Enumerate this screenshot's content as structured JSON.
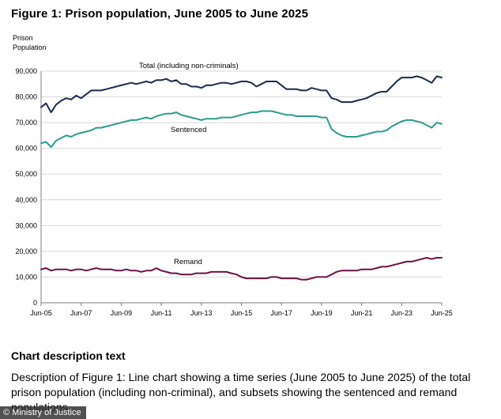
{
  "figure_title": "Figure 1: Prison population, June 2005 to June 2025",
  "description_heading": "Chart description text",
  "description_text": "Description of Figure 1: Line chart showing a time series (June 2005 to June 2025) of the total prison population (including non-criminal), and subsets showing the sentenced and remand populations",
  "credit": "© Ministry of Justice",
  "colors": {
    "total": "#1c2a4f",
    "sentenced": "#2a9d8f",
    "remand": "#6b1246",
    "axis": "#7f7f7f",
    "grid": "#d9d9d9"
  },
  "chart_data": {
    "type": "line",
    "title": "Figure 1: Prison population, June 2005 to June 2025",
    "ylabel": [
      "Prison",
      "Population"
    ],
    "xlabel": "",
    "ylim": [
      0,
      90000
    ],
    "xlim": [
      2005.5,
      2025.5
    ],
    "grid": true,
    "yticks": [
      "0",
      "10,000",
      "20,000",
      "30,000",
      "40,000",
      "50,000",
      "60,000",
      "70,000",
      "80,000",
      "90,000"
    ],
    "xticks": [
      "Jun-05",
      "Jun-07",
      "Jun-09",
      "Jun-11",
      "Jun-13",
      "Jun-15",
      "Jun-17",
      "Jun-19",
      "Jun-21",
      "Jun-23",
      "Jun-25"
    ],
    "series": [
      {
        "name": "Total (including non-criminals)",
        "x": [
          2005.5,
          2005.75,
          2006.0,
          2006.25,
          2006.5,
          2006.75,
          2007.0,
          2007.25,
          2007.5,
          2007.75,
          2008.0,
          2008.25,
          2008.5,
          2008.75,
          2009.0,
          2009.25,
          2009.5,
          2009.75,
          2010.0,
          2010.25,
          2010.5,
          2010.75,
          2011.0,
          2011.25,
          2011.5,
          2011.75,
          2012.0,
          2012.25,
          2012.5,
          2012.75,
          2013.0,
          2013.25,
          2013.5,
          2013.75,
          2014.0,
          2014.25,
          2014.5,
          2014.75,
          2015.0,
          2015.25,
          2015.5,
          2015.75,
          2016.0,
          2016.25,
          2016.5,
          2016.75,
          2017.0,
          2017.25,
          2017.5,
          2017.75,
          2018.0,
          2018.25,
          2018.5,
          2018.75,
          2019.0,
          2019.25,
          2019.5,
          2019.75,
          2020.0,
          2020.25,
          2020.5,
          2020.75,
          2021.0,
          2021.25,
          2021.5,
          2021.75,
          2022.0,
          2022.25,
          2022.5,
          2022.75,
          2023.0,
          2023.25,
          2023.5,
          2023.75,
          2024.0,
          2024.25,
          2024.5,
          2024.75,
          2025.0,
          2025.25,
          2025.5
        ],
        "values": [
          76000,
          77500,
          74000,
          77000,
          78500,
          79500,
          79000,
          80500,
          79500,
          81000,
          82500,
          82500,
          82500,
          83000,
          83500,
          84000,
          84500,
          85000,
          85500,
          85000,
          85500,
          86000,
          85500,
          86500,
          86500,
          87000,
          86000,
          86500,
          85000,
          85000,
          84000,
          84000,
          83500,
          84500,
          84500,
          85000,
          85500,
          85500,
          85000,
          85500,
          86000,
          86000,
          85500,
          84000,
          85000,
          86000,
          86000,
          86000,
          84500,
          83000,
          83000,
          83000,
          82500,
          82500,
          83500,
          83000,
          82500,
          82500,
          79500,
          79000,
          78000,
          78000,
          78000,
          78500,
          79000,
          79500,
          80500,
          81500,
          82000,
          82000,
          84000,
          86000,
          87500,
          87500,
          87500,
          88000,
          87500,
          86500,
          85500,
          88000,
          87500
        ]
      },
      {
        "name": "Sentenced",
        "x": [
          2005.5,
          2005.75,
          2006.0,
          2006.25,
          2006.5,
          2006.75,
          2007.0,
          2007.25,
          2007.5,
          2007.75,
          2008.0,
          2008.25,
          2008.5,
          2008.75,
          2009.0,
          2009.25,
          2009.5,
          2009.75,
          2010.0,
          2010.25,
          2010.5,
          2010.75,
          2011.0,
          2011.25,
          2011.5,
          2011.75,
          2012.0,
          2012.25,
          2012.5,
          2012.75,
          2013.0,
          2013.25,
          2013.5,
          2013.75,
          2014.0,
          2014.25,
          2014.5,
          2014.75,
          2015.0,
          2015.25,
          2015.5,
          2015.75,
          2016.0,
          2016.25,
          2016.5,
          2016.75,
          2017.0,
          2017.25,
          2017.5,
          2017.75,
          2018.0,
          2018.25,
          2018.5,
          2018.75,
          2019.0,
          2019.25,
          2019.5,
          2019.75,
          2020.0,
          2020.25,
          2020.5,
          2020.75,
          2021.0,
          2021.25,
          2021.5,
          2021.75,
          2022.0,
          2022.25,
          2022.5,
          2022.75,
          2023.0,
          2023.25,
          2023.5,
          2023.75,
          2024.0,
          2024.25,
          2024.5,
          2024.75,
          2025.0,
          2025.25,
          2025.5
        ],
        "values": [
          62000,
          62500,
          60500,
          63000,
          64000,
          65000,
          64500,
          65500,
          66000,
          66500,
          67000,
          68000,
          68000,
          68500,
          69000,
          69500,
          70000,
          70500,
          71000,
          71000,
          71500,
          72000,
          71500,
          72500,
          73000,
          73500,
          73500,
          74000,
          73000,
          72500,
          72000,
          71500,
          71000,
          71500,
          71500,
          71500,
          72000,
          72000,
          72000,
          72500,
          73000,
          73500,
          74000,
          74000,
          74500,
          74500,
          74500,
          74000,
          73500,
          73000,
          73000,
          72500,
          72500,
          72500,
          72500,
          72500,
          72000,
          72000,
          67500,
          66000,
          65000,
          64500,
          64500,
          64500,
          65000,
          65500,
          66000,
          66500,
          66500,
          67000,
          68500,
          69500,
          70500,
          71000,
          71000,
          70500,
          70000,
          69000,
          68000,
          70000,
          69500
        ]
      },
      {
        "name": "Remand",
        "x": [
          2005.5,
          2005.75,
          2006.0,
          2006.25,
          2006.5,
          2006.75,
          2007.0,
          2007.25,
          2007.5,
          2007.75,
          2008.0,
          2008.25,
          2008.5,
          2008.75,
          2009.0,
          2009.25,
          2009.5,
          2009.75,
          2010.0,
          2010.25,
          2010.5,
          2010.75,
          2011.0,
          2011.25,
          2011.5,
          2011.75,
          2012.0,
          2012.25,
          2012.5,
          2012.75,
          2013.0,
          2013.25,
          2013.5,
          2013.75,
          2014.0,
          2014.25,
          2014.5,
          2014.75,
          2015.0,
          2015.25,
          2015.5,
          2015.75,
          2016.0,
          2016.25,
          2016.5,
          2016.75,
          2017.0,
          2017.25,
          2017.5,
          2017.75,
          2018.0,
          2018.25,
          2018.5,
          2018.75,
          2019.0,
          2019.25,
          2019.5,
          2019.75,
          2020.0,
          2020.25,
          2020.5,
          2020.75,
          2021.0,
          2021.25,
          2021.5,
          2021.75,
          2022.0,
          2022.25,
          2022.5,
          2022.75,
          2023.0,
          2023.25,
          2023.5,
          2023.75,
          2024.0,
          2024.25,
          2024.5,
          2024.75,
          2025.0,
          2025.25,
          2025.5
        ],
        "values": [
          13000,
          13500,
          12500,
          13000,
          13000,
          13000,
          12500,
          13000,
          13000,
          12500,
          13000,
          13500,
          13000,
          13000,
          13000,
          12500,
          12500,
          13000,
          12500,
          12500,
          12000,
          12500,
          12500,
          13500,
          12500,
          12000,
          11500,
          11500,
          11000,
          11000,
          11000,
          11500,
          11500,
          11500,
          12000,
          12000,
          12000,
          12000,
          11500,
          11000,
          10000,
          9500,
          9500,
          9500,
          9500,
          9500,
          10000,
          10000,
          9500,
          9500,
          9500,
          9500,
          9000,
          9000,
          9500,
          10000,
          10000,
          10000,
          11000,
          12000,
          12500,
          12500,
          12500,
          12500,
          13000,
          13000,
          13000,
          13500,
          14000,
          14000,
          14500,
          15000,
          15500,
          16000,
          16000,
          16500,
          17000,
          17500,
          17000,
          17500,
          17500
        ]
      }
    ]
  }
}
